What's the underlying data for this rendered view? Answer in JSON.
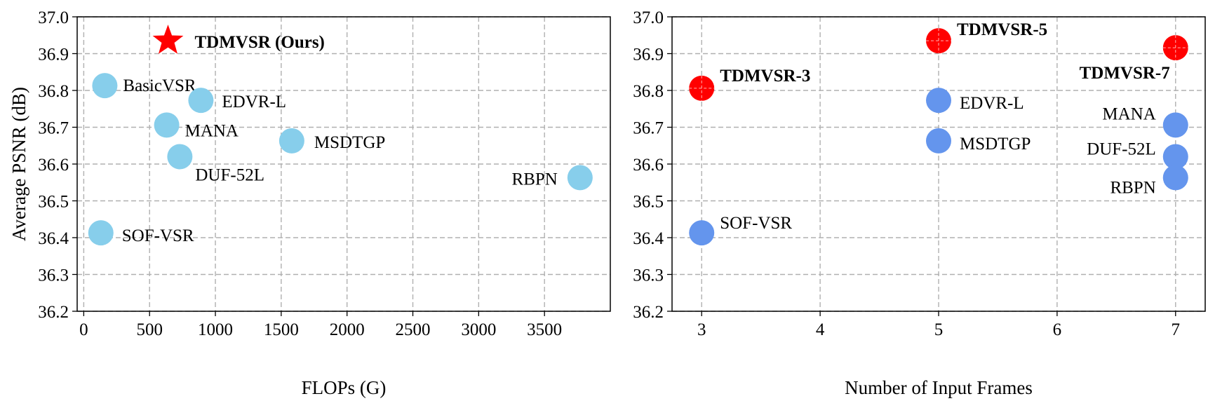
{
  "chart_data": [
    {
      "type": "scatter",
      "xlabel": "FLOPs (G)",
      "ylabel": "Average PSNR (dB)",
      "xlim": [
        -50,
        4000
      ],
      "ylim": [
        36.2,
        37.0
      ],
      "xticks": [
        0,
        500,
        1000,
        1500,
        2000,
        2500,
        3000,
        3500
      ],
      "yticks": [
        36.2,
        36.3,
        36.4,
        36.5,
        36.6,
        36.7,
        36.8,
        36.9,
        37.0
      ],
      "xtick_labels": [
        "0",
        "500",
        "1000",
        "1500",
        "2000",
        "2500",
        "3000",
        "3500"
      ],
      "ytick_labels": [
        "36.2",
        "36.3",
        "36.4",
        "36.5",
        "36.6",
        "36.7",
        "36.8",
        "36.9",
        "37.0"
      ],
      "grid": true,
      "points": [
        {
          "label": "TDMVSR (Ours)",
          "x": 640,
          "y": 36.935,
          "marker": "star",
          "color": "#ff0000",
          "bold": true
        },
        {
          "label": "BasicVSR",
          "x": 160,
          "y": 36.813,
          "marker": "circle",
          "color": "#87ceeb",
          "bold": false
        },
        {
          "label": "EDVR-L",
          "x": 890,
          "y": 36.773,
          "marker": "circle",
          "color": "#87ceeb",
          "bold": false
        },
        {
          "label": "MANA",
          "x": 630,
          "y": 36.706,
          "marker": "circle",
          "color": "#87ceeb",
          "bold": false
        },
        {
          "label": "MSDTGP",
          "x": 1580,
          "y": 36.663,
          "marker": "circle",
          "color": "#87ceeb",
          "bold": false
        },
        {
          "label": "DUF-52L",
          "x": 730,
          "y": 36.62,
          "marker": "circle",
          "color": "#87ceeb",
          "bold": false
        },
        {
          "label": "RBPN",
          "x": 3770,
          "y": 36.563,
          "marker": "circle",
          "color": "#87ceeb",
          "bold": false
        },
        {
          "label": "SOF-VSR",
          "x": 130,
          "y": 36.413,
          "marker": "circle",
          "color": "#87ceeb",
          "bold": false
        }
      ]
    },
    {
      "type": "scatter",
      "xlabel": "Number of Input Frames",
      "ylabel": "",
      "xlim": [
        2.75,
        7.25
      ],
      "ylim": [
        36.2,
        37.0
      ],
      "xticks": [
        3,
        4,
        5,
        6,
        7
      ],
      "yticks": [
        36.2,
        36.3,
        36.4,
        36.5,
        36.6,
        36.7,
        36.8,
        36.9,
        37.0
      ],
      "xtick_labels": [
        "3",
        "4",
        "5",
        "6",
        "7"
      ],
      "ytick_labels": [
        "36.2",
        "36.3",
        "36.4",
        "36.5",
        "36.6",
        "36.7",
        "36.8",
        "36.9",
        "37.0"
      ],
      "grid": true,
      "points": [
        {
          "label": "TDMVSR-3",
          "x": 3,
          "y": 36.806,
          "marker": "circle",
          "color": "#ff0000",
          "bold": true
        },
        {
          "label": "TDMVSR-5",
          "x": 5,
          "y": 36.935,
          "marker": "circle",
          "color": "#ff0000",
          "bold": true
        },
        {
          "label": "TDMVSR-7",
          "x": 7,
          "y": 36.916,
          "marker": "circle",
          "color": "#ff0000",
          "bold": true
        },
        {
          "label": "EDVR-L",
          "x": 5,
          "y": 36.773,
          "marker": "circle",
          "color": "#6495ed",
          "bold": false
        },
        {
          "label": "MSDTGP",
          "x": 5,
          "y": 36.663,
          "marker": "circle",
          "color": "#6495ed",
          "bold": false
        },
        {
          "label": "MANA",
          "x": 7,
          "y": 36.706,
          "marker": "circle",
          "color": "#6495ed",
          "bold": false
        },
        {
          "label": "DUF-52L",
          "x": 7,
          "y": 36.62,
          "marker": "circle",
          "color": "#6495ed",
          "bold": false
        },
        {
          "label": "RBPN",
          "x": 7,
          "y": 36.563,
          "marker": "circle",
          "color": "#6495ed",
          "bold": false
        },
        {
          "label": "SOF-VSR",
          "x": 3,
          "y": 36.413,
          "marker": "circle",
          "color": "#6495ed",
          "bold": false
        }
      ]
    }
  ]
}
